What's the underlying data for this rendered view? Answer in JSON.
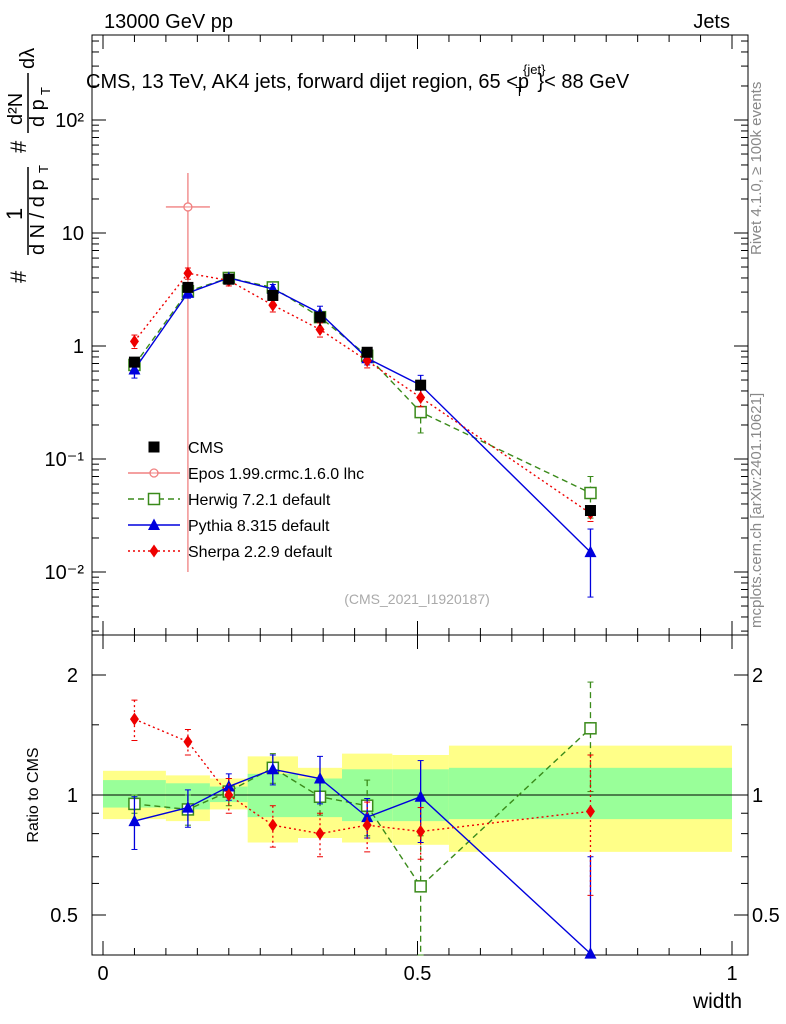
{
  "header": {
    "left": "13000 GeV pp",
    "right": "Jets",
    "plot_title": "CMS, 13 TeV, AK4 jets, forward dijet region, 65 <p",
    "plot_title_sup": "{jet}",
    "plot_title_sub": "T",
    "plot_title_end": "}< 88 GeV"
  },
  "side_labels": {
    "rivet": "Rivet 4.1.0, ≥ 100k events",
    "mcplots": "mcplots.cern.ch [arXiv:2401.10621]"
  },
  "watermark": "(CMS_2021_I1920187)",
  "axis_labels": {
    "ylabel_main_1": "#",
    "ylabel_main_frac_num": "1",
    "ylabel_main_frac_den": "d N / d p",
    "ylabel_main_frac_den_sub": "T",
    "ylabel_main_2": "#",
    "ylabel_main_2_frac_num": "d²N",
    "ylabel_main_2_frac_den": "d p",
    "ylabel_main_2_frac_den_sub": "T",
    "ylabel_main_2_tail": "dλ",
    "ylabel_ratio": "Ratio to CMS",
    "xlabel": "width"
  },
  "ticks": {
    "main_y": [
      "10⁻²",
      "10⁻¹",
      "1",
      "10",
      "10²"
    ],
    "ratio_y_left": [
      "0.5",
      "1",
      "2"
    ],
    "ratio_y_right": [
      "0.5",
      "1",
      "2"
    ],
    "x": [
      "0",
      "0.5",
      "1"
    ]
  },
  "colors": {
    "cms": "#000000",
    "epos": "#f08080",
    "herwig": "#3a8a1a",
    "pythia": "#0000dd",
    "sherpa": "#ee0000",
    "band_yellow": "#ffff88",
    "band_green": "#99ff99"
  },
  "legend": [
    {
      "key": "cms",
      "label": "CMS"
    },
    {
      "key": "epos",
      "label": "Epos 1.99.crmc.1.6.0 lhc"
    },
    {
      "key": "herwig",
      "label": "Herwig 7.2.1 default"
    },
    {
      "key": "pythia",
      "label": "Pythia 8.315 default"
    },
    {
      "key": "sherpa",
      "label": "Sherpa 2.2.9 default"
    }
  ],
  "chart_data": [
    {
      "type": "scatter",
      "panel": "main",
      "yscale": "log",
      "xlim": [
        0,
        1
      ],
      "ylim": [
        0.003,
        500
      ],
      "xlabel": "width",
      "ylabel": "# 1/(dN/dpT) # d²N/(dpT dλ)",
      "series": [
        {
          "name": "CMS",
          "key": "cms",
          "x": [
            0.05,
            0.135,
            0.2,
            0.27,
            0.345,
            0.42,
            0.505,
            0.775
          ],
          "y": [
            0.72,
            3.3,
            3.9,
            2.8,
            1.8,
            0.88,
            0.45,
            0.035
          ],
          "err": [
            0.05,
            0.3,
            0.3,
            0.2,
            0.3,
            0.08,
            0.05,
            0.004
          ]
        },
        {
          "name": "Epos 1.99.crmc.1.6.0 lhc",
          "key": "epos",
          "x": [
            0.135
          ],
          "y": [
            17
          ],
          "err_low": [
            16.99
          ],
          "err_high": [
            17
          ],
          "xerr": [
            0.035
          ]
        },
        {
          "name": "Herwig 7.2.1 default",
          "key": "herwig",
          "x": [
            0.05,
            0.135,
            0.2,
            0.27,
            0.345,
            0.42,
            0.505,
            0.775
          ],
          "y": [
            0.68,
            3.05,
            4.0,
            3.3,
            1.8,
            0.82,
            0.26,
            0.05
          ],
          "err": [
            0.05,
            0.2,
            0.3,
            0.3,
            0.2,
            0.1,
            0.09,
            0.02
          ]
        },
        {
          "name": "Pythia 8.315 default",
          "key": "pythia",
          "x": [
            0.05,
            0.135,
            0.2,
            0.27,
            0.345,
            0.42,
            0.505,
            0.775
          ],
          "y": [
            0.62,
            2.95,
            4.0,
            3.2,
            1.95,
            0.78,
            0.45,
            0.015
          ],
          "err": [
            0.1,
            0.3,
            0.3,
            0.3,
            0.3,
            0.1,
            0.1,
            0.009
          ]
        },
        {
          "name": "Sherpa 2.2.9 default",
          "key": "sherpa",
          "x": [
            0.05,
            0.135,
            0.2,
            0.27,
            0.345,
            0.42,
            0.505,
            0.775
          ],
          "y": [
            1.1,
            4.4,
            3.8,
            2.3,
            1.4,
            0.74,
            0.35,
            0.033
          ],
          "err": [
            0.15,
            0.5,
            0.4,
            0.3,
            0.2,
            0.1,
            0.06,
            0.005
          ]
        }
      ]
    },
    {
      "type": "scatter",
      "panel": "ratio",
      "yscale": "log",
      "xlim": [
        0,
        1
      ],
      "ylim": [
        0.43,
        2.35
      ],
      "ylabel": "Ratio to CMS",
      "xlabel": "width",
      "bands": {
        "edges": [
          0,
          0.1,
          0.17,
          0.23,
          0.31,
          0.38,
          0.46,
          0.55,
          1.0
        ],
        "yellow": [
          [
            0.87,
            1.15
          ],
          [
            0.86,
            1.12
          ],
          [
            0.92,
            1.1
          ],
          [
            0.76,
            1.25
          ],
          [
            0.78,
            1.17
          ],
          [
            0.76,
            1.27
          ],
          [
            0.75,
            1.26
          ],
          [
            0.72,
            1.33
          ]
        ],
        "green": [
          [
            0.93,
            1.09
          ],
          [
            0.92,
            1.07
          ],
          [
            0.96,
            1.05
          ],
          [
            0.88,
            1.13
          ],
          [
            0.88,
            1.1
          ],
          [
            0.86,
            1.16
          ],
          [
            0.86,
            1.16
          ],
          [
            0.87,
            1.17
          ]
        ]
      },
      "reference": 1,
      "series": [
        {
          "name": "Herwig 7.2.1 default",
          "key": "herwig",
          "x": [
            0.05,
            0.135,
            0.2,
            0.27,
            0.345,
            0.42,
            0.505,
            0.775
          ],
          "y": [
            0.95,
            0.92,
            1.02,
            1.17,
            0.99,
            0.94,
            0.59,
            1.47
          ],
          "err": [
            0.05,
            0.08,
            0.08,
            0.1,
            0.1,
            0.15,
            0.2,
            0.45
          ]
        },
        {
          "name": "Pythia 8.315 default",
          "key": "pythia",
          "x": [
            0.05,
            0.135,
            0.2,
            0.27,
            0.345,
            0.42,
            0.505,
            0.775
          ],
          "y": [
            0.86,
            0.93,
            1.05,
            1.16,
            1.1,
            0.88,
            0.99,
            0.4
          ],
          "err": [
            0.13,
            0.1,
            0.08,
            0.1,
            0.15,
            0.1,
            0.23,
            0.3
          ]
        },
        {
          "name": "Sherpa 2.2.9 default",
          "key": "sherpa",
          "x": [
            0.05,
            0.135,
            0.2,
            0.27,
            0.345,
            0.42,
            0.505,
            0.775
          ],
          "y": [
            1.55,
            1.36,
            1.0,
            0.84,
            0.8,
            0.84,
            0.81,
            0.91
          ],
          "err": [
            0.18,
            0.1,
            0.1,
            0.1,
            0.1,
            0.12,
            0.12,
            0.35
          ]
        }
      ]
    }
  ]
}
